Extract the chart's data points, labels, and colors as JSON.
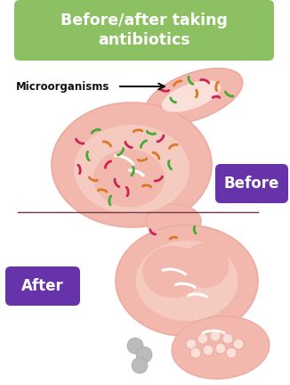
{
  "title": "Before/after taking\nantibiotics",
  "title_bg_color": "#8DC063",
  "title_text_color": "#ffffff",
  "before_label": "Before",
  "after_label": "After",
  "label_bg_color": "#6633AA",
  "label_text_color": "#ffffff",
  "microorganism_label": "Microorganisms",
  "fill_outer": "#F2B8AD",
  "fill_inner": "#F5CAC0",
  "fill_light": "#FAE0D8",
  "fill_deep": "#EDAA9E",
  "divider_color": "#7A3545",
  "bg_color": "#ffffff",
  "bc_red": "#CC2255",
  "bc_orange": "#DD7722",
  "bc_green": "#44AA33",
  "arrow_color": "#111111",
  "gray_color": "#BBBBBB"
}
